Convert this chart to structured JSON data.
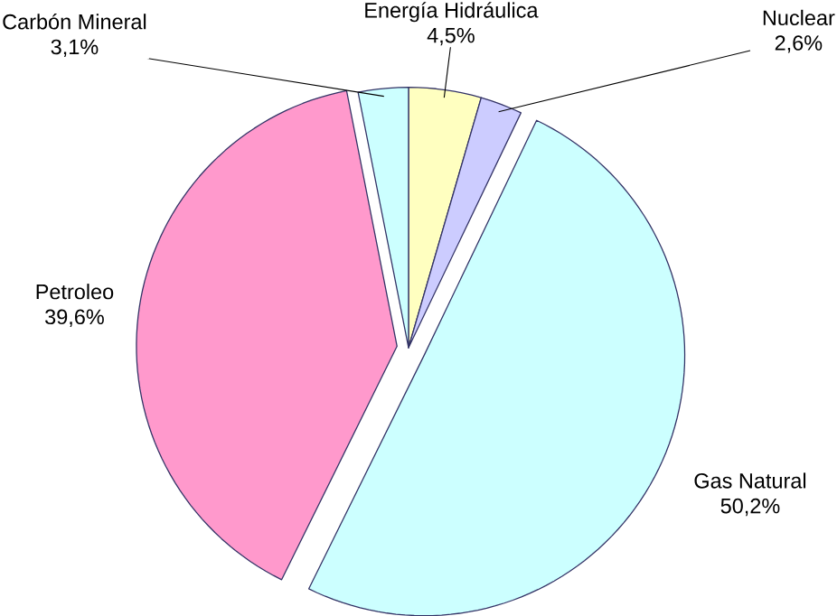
{
  "chart_data": {
    "type": "pie",
    "categories": [
      "Energía Hidráulica",
      "Nuclear",
      "Gas Natural",
      "Petroleo",
      "Carbón Mineral"
    ],
    "values": [
      4.5,
      2.6,
      50.2,
      39.6,
      3.1
    ],
    "colors": [
      "#ffffc0",
      "#ccccff",
      "#ccffff",
      "#ff99cc",
      "#ccffff"
    ],
    "value_labels": [
      "4,5%",
      "2,6%",
      "50,2%",
      "39,6%",
      "3,1%"
    ]
  }
}
